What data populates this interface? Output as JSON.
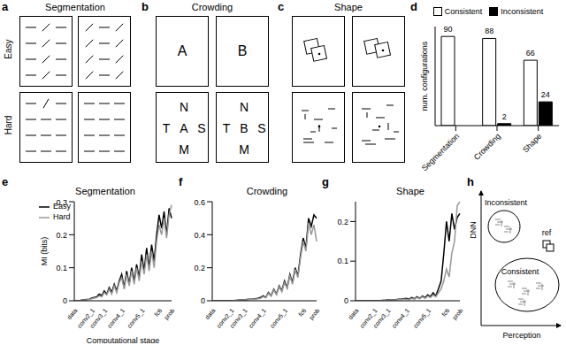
{
  "panels": [
    "a",
    "b",
    "c",
    "d",
    "e",
    "f",
    "g",
    "h"
  ],
  "stimuli": {
    "segmentation": {
      "title": "Segmentation",
      "rows": [
        "Easy",
        "Hard"
      ]
    },
    "crowding": {
      "title": "Crowding",
      "easy": [
        "A",
        "B"
      ],
      "hard": [
        [
          "N",
          "T",
          "A",
          "S",
          "M"
        ],
        [
          "N",
          "T",
          "B",
          "S",
          "M"
        ]
      ]
    },
    "shape": {
      "title": "Shape"
    }
  },
  "diagram": {
    "y_label": "DNN",
    "x_label": "Perception",
    "groups": [
      "Inconsistent",
      "Consistent"
    ],
    "reference": "ref"
  },
  "chart_data": [
    {
      "type": "bar",
      "categories": [
        "Segmentation",
        "Crowding",
        "Shape"
      ],
      "series": [
        {
          "name": "Consistent",
          "color": "#ffffff",
          "values": [
            90,
            88,
            66
          ]
        },
        {
          "name": "Inconsistent",
          "color": "#000000",
          "values": [
            0,
            2,
            24
          ]
        }
      ],
      "ylabel": "num. configurations",
      "ylim": [
        0,
        100
      ],
      "legend": "upper right",
      "data_labels": true,
      "tick_labels": "x"
    },
    {
      "type": "line",
      "title": "Segmentation",
      "xlabel": "Computational stage",
      "ylabel": "MI (bits)",
      "categories": [
        "data",
        null,
        null,
        null,
        null,
        null,
        null,
        "conv2_1",
        null,
        null,
        null,
        null,
        "conv3_1",
        null,
        null,
        null,
        null,
        null,
        null,
        "conv4_1",
        null,
        null,
        null,
        null,
        null,
        null,
        null,
        "conv5_1",
        null,
        null,
        null,
        null,
        null,
        null,
        "fc6",
        null,
        null,
        null,
        null,
        "prob"
      ],
      "series": [
        {
          "name": "Easy",
          "color": "#000000",
          "values": [
            0,
            0,
            0,
            0.002,
            0.003,
            0.004,
            0.005,
            0.008,
            0.01,
            0.012,
            0.02,
            0.015,
            0.03,
            0.02,
            0.04,
            0.025,
            0.05,
            0.03,
            0.06,
            0.08,
            0.04,
            0.09,
            0.05,
            0.1,
            0.06,
            0.11,
            0.07,
            0.14,
            0.09,
            0.16,
            0.1,
            0.17,
            0.12,
            0.2,
            0.26,
            0.22,
            0.27,
            0.2,
            0.28,
            0.25
          ]
        },
        {
          "name": "Hard",
          "color": "#999999",
          "values": [
            0,
            0,
            0,
            0.001,
            0.002,
            0.003,
            0.004,
            0.006,
            0.008,
            0.01,
            0.015,
            0.012,
            0.025,
            0.018,
            0.035,
            0.02,
            0.045,
            0.025,
            0.055,
            0.07,
            0.035,
            0.08,
            0.045,
            0.09,
            0.05,
            0.1,
            0.06,
            0.12,
            0.08,
            0.14,
            0.09,
            0.15,
            0.1,
            0.18,
            0.23,
            0.2,
            0.25,
            0.19,
            0.26,
            0.29
          ]
        }
      ],
      "ylim": [
        0,
        0.3
      ],
      "yticks": [
        0,
        0.1,
        0.2,
        0.3
      ],
      "legend": "upper left"
    },
    {
      "type": "line",
      "title": "Crowding",
      "categories": [
        "data",
        null,
        null,
        null,
        null,
        null,
        null,
        "conv2_1",
        null,
        null,
        null,
        null,
        "conv3_1",
        null,
        null,
        null,
        null,
        null,
        null,
        "conv4_1",
        null,
        null,
        null,
        null,
        null,
        null,
        null,
        "conv5_1",
        null,
        null,
        null,
        null,
        null,
        null,
        "fc6",
        null,
        null,
        null,
        null,
        "prob"
      ],
      "series": [
        {
          "name": "Easy",
          "color": "#000000",
          "values": [
            0,
            0,
            0,
            0,
            0,
            0,
            0,
            0,
            0.002,
            0.003,
            0.004,
            0.005,
            0.006,
            0.008,
            0.01,
            0.01,
            0.012,
            0.015,
            0.02,
            0.03,
            0.02,
            0.05,
            0.03,
            0.07,
            0.04,
            0.09,
            0.06,
            0.12,
            0.08,
            0.16,
            0.11,
            0.2,
            0.15,
            0.28,
            0.38,
            0.32,
            0.5,
            0.45,
            0.52,
            0.5
          ]
        },
        {
          "name": "Hard",
          "color": "#999999",
          "values": [
            0,
            0,
            0,
            0,
            0,
            0,
            0,
            0,
            0.001,
            0.002,
            0.003,
            0.004,
            0.005,
            0.006,
            0.008,
            0.008,
            0.01,
            0.012,
            0.015,
            0.025,
            0.018,
            0.045,
            0.028,
            0.065,
            0.038,
            0.085,
            0.055,
            0.11,
            0.075,
            0.15,
            0.1,
            0.19,
            0.14,
            0.26,
            0.36,
            0.3,
            0.47,
            0.4,
            0.46,
            0.36
          ]
        }
      ],
      "ylim": [
        0,
        0.6
      ],
      "yticks": [
        0,
        0.2,
        0.4,
        0.6
      ]
    },
    {
      "type": "line",
      "title": "Shape",
      "categories": [
        "data",
        null,
        null,
        null,
        null,
        null,
        null,
        "conv2_1",
        null,
        null,
        null,
        null,
        "conv3_1",
        null,
        null,
        null,
        null,
        null,
        null,
        "conv4_1",
        null,
        null,
        null,
        null,
        null,
        null,
        null,
        "conv5_1",
        null,
        null,
        null,
        null,
        null,
        null,
        "fc6",
        null,
        null,
        null,
        null,
        "prob"
      ],
      "series": [
        {
          "name": "Easy",
          "color": "#000000",
          "values": [
            0,
            0,
            0,
            0,
            0,
            0,
            0,
            0,
            0,
            0,
            0.001,
            0.001,
            0.002,
            0.002,
            0.003,
            0.003,
            0.004,
            0.004,
            0.005,
            0.006,
            0.004,
            0.008,
            0.005,
            0.01,
            0.006,
            0.012,
            0.008,
            0.015,
            0.01,
            0.02,
            0.012,
            0.03,
            0.05,
            0.12,
            0.2,
            0.15,
            0.22,
            0.18,
            0.21,
            0.22
          ]
        },
        {
          "name": "Hard",
          "color": "#999999",
          "values": [
            0,
            0,
            0,
            0,
            0,
            0,
            0,
            0,
            0,
            0,
            0.001,
            0.001,
            0.001,
            0.002,
            0.002,
            0.002,
            0.003,
            0.003,
            0.004,
            0.004,
            0.003,
            0.006,
            0.004,
            0.008,
            0.005,
            0.01,
            0.006,
            0.012,
            0.008,
            0.015,
            0.01,
            0.02,
            0.03,
            0.05,
            0.08,
            0.06,
            0.12,
            0.15,
            0.24,
            0.25
          ]
        }
      ],
      "ylim": [
        0,
        0.25
      ],
      "yticks": [
        0,
        0.1,
        0.2
      ]
    }
  ]
}
